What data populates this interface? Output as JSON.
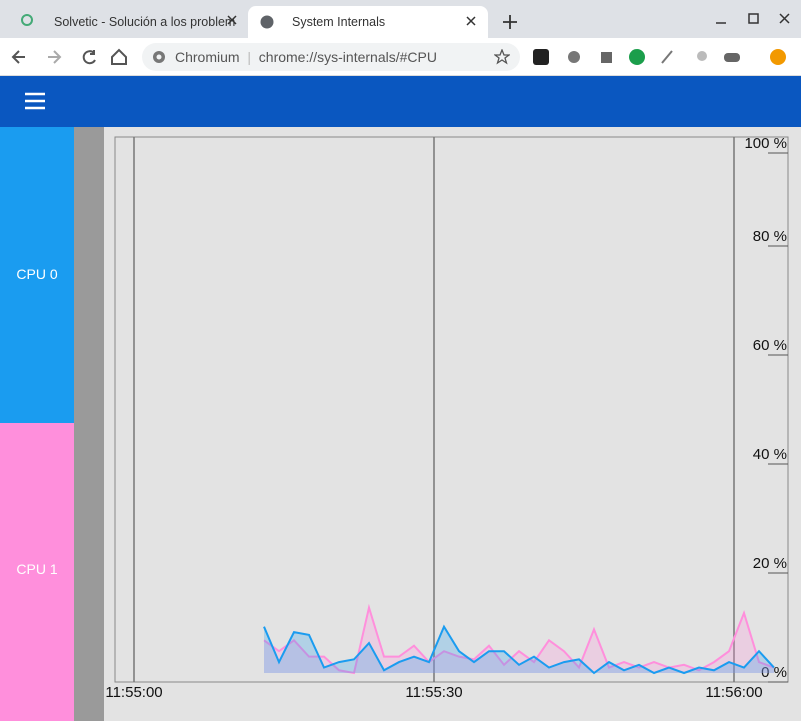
{
  "browser": {
    "tabs": [
      "Solvetic - Solución a los problem",
      "System Internals"
    ],
    "omnibox_origin": "Chromium",
    "url": "chrome://sys-internals/#CPU"
  },
  "chart_data": {
    "type": "area",
    "x": [
      13,
      14.5,
      16,
      17.5,
      19,
      20.5,
      22,
      23.5,
      25,
      26.5,
      28,
      29.5,
      31,
      32.5,
      34,
      35.5,
      37,
      38.5,
      40,
      41.5,
      43,
      44.5,
      46,
      47.5,
      49,
      50.5,
      52,
      53.5,
      55,
      56.5,
      58,
      59.5,
      61,
      62.5,
      64
    ],
    "series": [
      {
        "name": "CPU 0",
        "color": "#1a9cf0",
        "values": [
          8.5,
          2,
          7.5,
          7,
          1,
          2,
          2.5,
          5.5,
          0.5,
          2,
          3,
          2,
          8.5,
          4,
          2,
          4,
          4,
          1.5,
          3,
          1,
          2,
          2.5,
          0,
          2,
          0.5,
          1.5,
          0,
          1,
          0,
          1,
          0.5,
          2,
          1,
          4,
          1
        ]
      },
      {
        "name": "CPU 1",
        "color": "#ff8fdc",
        "values": [
          6,
          4,
          6,
          3,
          3,
          0.5,
          0,
          12,
          3,
          3,
          5,
          2,
          4,
          3,
          2.5,
          5,
          1.5,
          4,
          2,
          6,
          4,
          1,
          8,
          1,
          2,
          1,
          2,
          1,
          1.5,
          0.5,
          2,
          4,
          11,
          2,
          1
        ]
      }
    ],
    "xlim": [
      -1.9,
      65.4
    ],
    "xticks": [
      {
        "value": 0,
        "label": "11:55:00"
      },
      {
        "value": 30,
        "label": "11:55:30"
      },
      {
        "value": 60,
        "label": "11:56:00"
      }
    ],
    "ylim": [
      0,
      100
    ],
    "yticks": [
      {
        "value": 0,
        "label": "0 %"
      },
      {
        "value": 20,
        "label": "20 %"
      },
      {
        "value": 40,
        "label": "40 %"
      },
      {
        "value": 60,
        "label": "60 %"
      },
      {
        "value": 80,
        "label": "80 %"
      },
      {
        "value": 100,
        "label": "100 %"
      }
    ],
    "grid": true
  }
}
